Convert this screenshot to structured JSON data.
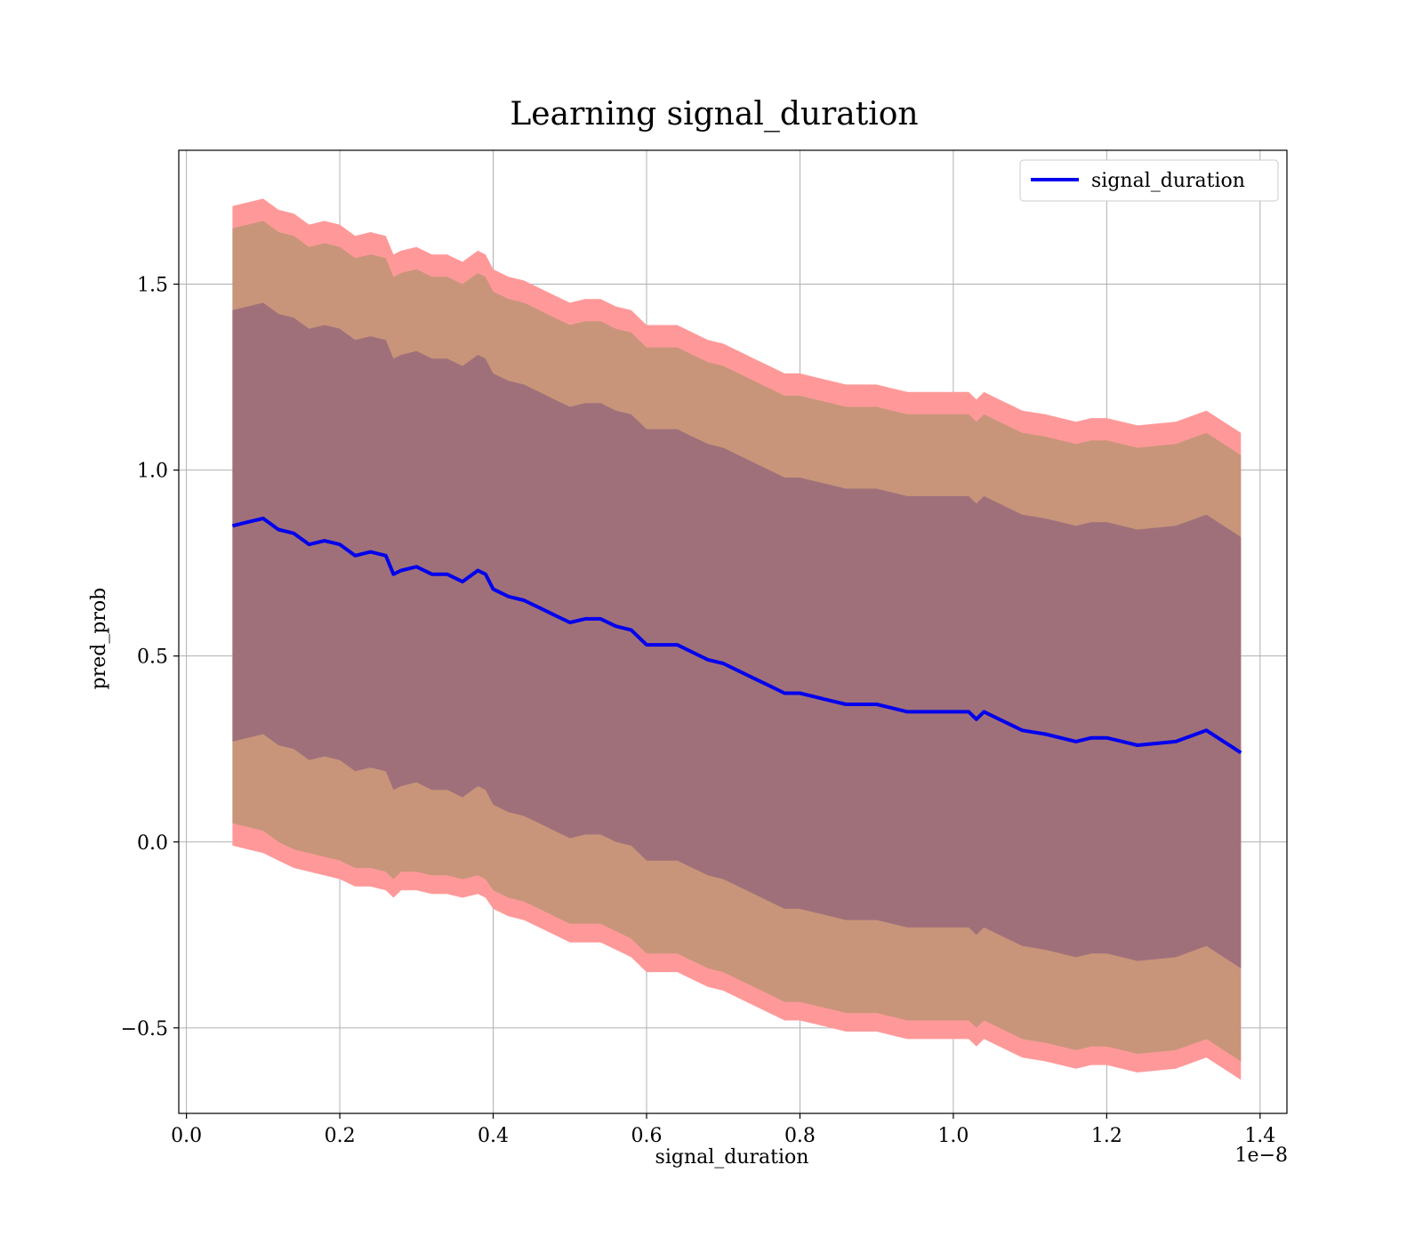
{
  "chart_data": {
    "type": "line",
    "title": "Learning signal_duration",
    "xlabel": "signal_duration",
    "ylabel": "pred_prob",
    "x_offset_label": "1e−8",
    "xlim": [
      -0.01,
      1.435
    ],
    "ylim": [
      -0.73,
      1.86
    ],
    "xticks": [
      0.0,
      0.2,
      0.4,
      0.6,
      0.8,
      1.0,
      1.2,
      1.4
    ],
    "xtick_labels": [
      "0.0",
      "0.2",
      "0.4",
      "0.6",
      "0.8",
      "1.0",
      "1.2",
      "1.4"
    ],
    "yticks": [
      -0.5,
      0.0,
      0.5,
      1.0,
      1.5
    ],
    "ytick_labels": [
      "−0.5",
      "0.0",
      "0.5",
      "1.0",
      "1.5"
    ],
    "grid": true,
    "legend": {
      "position": "top-right",
      "entries": [
        "signal_duration"
      ]
    },
    "colors": {
      "line": "#0000ee",
      "band_outer": "#ff9999",
      "band_middle": "#c8957a",
      "band_inner": "#a0707a"
    },
    "series": [
      {
        "name": "signal_duration",
        "x": [
          0.06,
          0.08,
          0.1,
          0.12,
          0.14,
          0.16,
          0.18,
          0.2,
          0.22,
          0.24,
          0.26,
          0.27,
          0.28,
          0.3,
          0.32,
          0.34,
          0.36,
          0.38,
          0.39,
          0.4,
          0.42,
          0.44,
          0.46,
          0.48,
          0.5,
          0.52,
          0.54,
          0.56,
          0.58,
          0.6,
          0.62,
          0.64,
          0.66,
          0.68,
          0.7,
          0.72,
          0.74,
          0.76,
          0.78,
          0.8,
          0.82,
          0.84,
          0.86,
          0.88,
          0.9,
          0.92,
          0.94,
          0.96,
          1.0,
          1.02,
          1.03,
          1.04,
          1.06,
          1.09,
          1.12,
          1.16,
          1.18,
          1.2,
          1.24,
          1.29,
          1.33,
          1.375
        ],
        "y": [
          0.85,
          0.86,
          0.87,
          0.84,
          0.83,
          0.8,
          0.81,
          0.8,
          0.77,
          0.78,
          0.77,
          0.72,
          0.73,
          0.74,
          0.72,
          0.72,
          0.7,
          0.73,
          0.72,
          0.68,
          0.66,
          0.65,
          0.63,
          0.61,
          0.59,
          0.6,
          0.6,
          0.58,
          0.57,
          0.53,
          0.53,
          0.53,
          0.51,
          0.49,
          0.48,
          0.46,
          0.44,
          0.42,
          0.4,
          0.4,
          0.39,
          0.38,
          0.37,
          0.37,
          0.37,
          0.36,
          0.35,
          0.35,
          0.35,
          0.35,
          0.33,
          0.35,
          0.33,
          0.3,
          0.29,
          0.27,
          0.28,
          0.28,
          0.26,
          0.27,
          0.3,
          0.24
        ]
      }
    ],
    "bands": [
      {
        "name": "outer",
        "lower": [
          -0.01,
          -0.02,
          -0.03,
          -0.05,
          -0.07,
          -0.08,
          -0.09,
          -0.1,
          -0.12,
          -0.12,
          -0.13,
          -0.15,
          -0.13,
          -0.13,
          -0.14,
          -0.14,
          -0.15,
          -0.14,
          -0.15,
          -0.18,
          -0.2,
          -0.21,
          -0.23,
          -0.25,
          -0.27,
          -0.27,
          -0.27,
          -0.29,
          -0.31,
          -0.35,
          -0.35,
          -0.35,
          -0.37,
          -0.39,
          -0.4,
          -0.42,
          -0.44,
          -0.46,
          -0.48,
          -0.48,
          -0.49,
          -0.5,
          -0.51,
          -0.51,
          -0.51,
          -0.52,
          -0.53,
          -0.53,
          -0.53,
          -0.53,
          -0.55,
          -0.53,
          -0.55,
          -0.58,
          -0.59,
          -0.61,
          -0.6,
          -0.6,
          -0.62,
          -0.61,
          -0.58,
          -0.64
        ],
        "upper": [
          1.71,
          1.72,
          1.73,
          1.7,
          1.69,
          1.66,
          1.67,
          1.66,
          1.63,
          1.64,
          1.63,
          1.58,
          1.59,
          1.6,
          1.58,
          1.58,
          1.56,
          1.59,
          1.58,
          1.54,
          1.52,
          1.51,
          1.49,
          1.47,
          1.45,
          1.46,
          1.46,
          1.44,
          1.43,
          1.39,
          1.39,
          1.39,
          1.37,
          1.35,
          1.34,
          1.32,
          1.3,
          1.28,
          1.26,
          1.26,
          1.25,
          1.24,
          1.23,
          1.23,
          1.23,
          1.22,
          1.21,
          1.21,
          1.21,
          1.21,
          1.19,
          1.21,
          1.19,
          1.16,
          1.15,
          1.13,
          1.14,
          1.14,
          1.12,
          1.13,
          1.16,
          1.1
        ]
      },
      {
        "name": "middle",
        "lower": [
          0.05,
          0.04,
          0.03,
          0.0,
          -0.02,
          -0.03,
          -0.04,
          -0.05,
          -0.07,
          -0.07,
          -0.08,
          -0.1,
          -0.08,
          -0.08,
          -0.09,
          -0.09,
          -0.1,
          -0.09,
          -0.1,
          -0.13,
          -0.15,
          -0.16,
          -0.18,
          -0.2,
          -0.22,
          -0.22,
          -0.22,
          -0.24,
          -0.26,
          -0.3,
          -0.3,
          -0.3,
          -0.32,
          -0.34,
          -0.35,
          -0.37,
          -0.39,
          -0.41,
          -0.43,
          -0.43,
          -0.44,
          -0.45,
          -0.46,
          -0.46,
          -0.46,
          -0.47,
          -0.48,
          -0.48,
          -0.48,
          -0.48,
          -0.5,
          -0.48,
          -0.5,
          -0.53,
          -0.54,
          -0.56,
          -0.55,
          -0.55,
          -0.57,
          -0.56,
          -0.53,
          -0.59
        ],
        "upper": [
          1.65,
          1.66,
          1.67,
          1.64,
          1.63,
          1.6,
          1.61,
          1.6,
          1.57,
          1.58,
          1.57,
          1.52,
          1.53,
          1.54,
          1.52,
          1.52,
          1.5,
          1.53,
          1.52,
          1.48,
          1.46,
          1.45,
          1.43,
          1.41,
          1.39,
          1.4,
          1.4,
          1.38,
          1.37,
          1.33,
          1.33,
          1.33,
          1.31,
          1.29,
          1.28,
          1.26,
          1.24,
          1.22,
          1.2,
          1.2,
          1.19,
          1.18,
          1.17,
          1.17,
          1.17,
          1.16,
          1.15,
          1.15,
          1.15,
          1.15,
          1.13,
          1.15,
          1.13,
          1.1,
          1.09,
          1.07,
          1.08,
          1.08,
          1.06,
          1.07,
          1.1,
          1.04
        ]
      },
      {
        "name": "inner",
        "lower": [
          0.27,
          0.28,
          0.29,
          0.26,
          0.25,
          0.22,
          0.23,
          0.22,
          0.19,
          0.2,
          0.19,
          0.14,
          0.15,
          0.16,
          0.14,
          0.14,
          0.12,
          0.15,
          0.14,
          0.1,
          0.08,
          0.07,
          0.05,
          0.03,
          0.01,
          0.02,
          0.02,
          0.0,
          -0.01,
          -0.05,
          -0.05,
          -0.05,
          -0.07,
          -0.09,
          -0.1,
          -0.12,
          -0.14,
          -0.16,
          -0.18,
          -0.18,
          -0.19,
          -0.2,
          -0.21,
          -0.21,
          -0.21,
          -0.22,
          -0.23,
          -0.23,
          -0.23,
          -0.23,
          -0.25,
          -0.23,
          -0.25,
          -0.28,
          -0.29,
          -0.31,
          -0.3,
          -0.3,
          -0.32,
          -0.31,
          -0.28,
          -0.34
        ],
        "upper": [
          1.43,
          1.44,
          1.45,
          1.42,
          1.41,
          1.38,
          1.39,
          1.38,
          1.35,
          1.36,
          1.35,
          1.3,
          1.31,
          1.32,
          1.3,
          1.3,
          1.28,
          1.31,
          1.3,
          1.26,
          1.24,
          1.23,
          1.21,
          1.19,
          1.17,
          1.18,
          1.18,
          1.16,
          1.15,
          1.11,
          1.11,
          1.11,
          1.09,
          1.07,
          1.06,
          1.04,
          1.02,
          1.0,
          0.98,
          0.98,
          0.97,
          0.96,
          0.95,
          0.95,
          0.95,
          0.94,
          0.93,
          0.93,
          0.93,
          0.93,
          0.91,
          0.93,
          0.91,
          0.88,
          0.87,
          0.85,
          0.86,
          0.86,
          0.84,
          0.85,
          0.88,
          0.82
        ]
      }
    ]
  }
}
